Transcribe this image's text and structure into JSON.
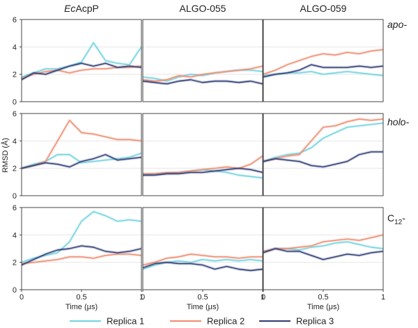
{
  "columns": [
    {
      "prefix": "Ec",
      "label": "AcpP"
    },
    {
      "prefix": "",
      "label": "ALGO-055"
    },
    {
      "prefix": "",
      "label": "ALGO-059"
    }
  ],
  "rows": [
    {
      "label": "apo-",
      "base": "",
      "sub": ""
    },
    {
      "label": "holo-",
      "base": "",
      "sub": ""
    },
    {
      "label": "",
      "base": "C",
      "sub": "12"
    }
  ],
  "row_suffix": "-",
  "ylabel": "RMSD (Å)",
  "xlabel": "Time (μs)",
  "yticks": [
    "0",
    "2",
    "4",
    "6"
  ],
  "xticks": [
    "0",
    "0.5",
    "1"
  ],
  "legend": [
    "Replica 1",
    "Replica 2",
    "Replica 3"
  ],
  "colors": {
    "replica_1": "#6fd3e0",
    "replica_2": "#f08a6e",
    "replica_3": "#2d3a74",
    "axis": "#444444",
    "grid": "#e6e6e6"
  },
  "chart_data": {
    "type": "line",
    "layout": "3x3 small multiples",
    "xlim": [
      0,
      1
    ],
    "ylim": [
      0,
      6
    ],
    "grid": "horizontal",
    "legend_position": "bottom",
    "x": [
      0,
      0.1,
      0.2,
      0.3,
      0.4,
      0.5,
      0.6,
      0.7,
      0.8,
      0.9,
      1.0
    ],
    "panels": [
      {
        "row": "apo-",
        "column": "EcAcpP",
        "series": [
          {
            "name": "Replica 1",
            "values": [
              1.8,
              2.1,
              2.4,
              2.4,
              2.6,
              2.9,
              4.3,
              3.0,
              2.8,
              2.7,
              4.0
            ]
          },
          {
            "name": "Replica 2",
            "values": [
              1.7,
              2.0,
              2.2,
              2.3,
              2.1,
              2.3,
              2.4,
              2.4,
              2.5,
              2.5,
              2.6
            ]
          },
          {
            "name": "Replica 3",
            "values": [
              1.6,
              2.1,
              2.0,
              2.3,
              2.6,
              2.8,
              2.6,
              2.8,
              2.5,
              2.6,
              2.5
            ]
          }
        ]
      },
      {
        "row": "apo-",
        "column": "ALGO-055",
        "series": [
          {
            "name": "Replica 1",
            "values": [
              1.8,
              1.7,
              1.5,
              1.8,
              2.0,
              1.9,
              2.1,
              2.2,
              2.3,
              2.3,
              2.2
            ]
          },
          {
            "name": "Replica 2",
            "values": [
              1.6,
              1.5,
              1.6,
              1.9,
              1.8,
              2.0,
              2.1,
              2.2,
              2.3,
              2.4,
              2.6
            ]
          },
          {
            "name": "Replica 3",
            "values": [
              1.5,
              1.4,
              1.3,
              1.5,
              1.6,
              1.4,
              1.5,
              1.5,
              1.4,
              1.5,
              1.3
            ]
          }
        ]
      },
      {
        "row": "apo-",
        "column": "ALGO-059",
        "series": [
          {
            "name": "Replica 1",
            "values": [
              1.9,
              2.0,
              2.1,
              2.1,
              2.2,
              2.0,
              2.1,
              2.2,
              2.1,
              2.0,
              1.9
            ]
          },
          {
            "name": "Replica 2",
            "values": [
              2.0,
              2.3,
              2.7,
              3.0,
              3.3,
              3.5,
              3.4,
              3.6,
              3.5,
              3.7,
              3.8
            ]
          },
          {
            "name": "Replica 3",
            "values": [
              1.8,
              2.0,
              2.1,
              2.3,
              2.7,
              2.5,
              2.5,
              2.5,
              2.6,
              2.5,
              2.6
            ]
          }
        ]
      },
      {
        "row": "holo-",
        "column": "EcAcpP",
        "series": [
          {
            "name": "Replica 1",
            "values": [
              2.0,
              2.3,
              2.5,
              3.0,
              3.0,
              2.4,
              2.5,
              2.6,
              2.7,
              2.8,
              3.1
            ]
          },
          {
            "name": "Replica 2",
            "values": [
              2.0,
              2.2,
              2.5,
              4.0,
              5.5,
              4.6,
              4.5,
              4.3,
              4.1,
              4.1,
              4.0
            ]
          },
          {
            "name": "Replica 3",
            "values": [
              2.0,
              2.2,
              2.4,
              2.3,
              2.1,
              2.5,
              2.7,
              3.0,
              2.6,
              2.7,
              2.8
            ]
          }
        ]
      },
      {
        "row": "holo-",
        "column": "ALGO-055",
        "series": [
          {
            "name": "Replica 1",
            "values": [
              1.5,
              1.6,
              1.6,
              1.7,
              1.8,
              1.9,
              1.8,
              1.7,
              1.5,
              1.4,
              1.3
            ]
          },
          {
            "name": "Replica 2",
            "values": [
              1.6,
              1.6,
              1.7,
              1.7,
              1.8,
              1.9,
              2.0,
              2.1,
              2.0,
              2.3,
              2.9
            ]
          },
          {
            "name": "Replica 3",
            "values": [
              1.5,
              1.5,
              1.6,
              1.6,
              1.7,
              1.7,
              1.8,
              1.9,
              2.0,
              1.9,
              1.7
            ]
          }
        ]
      },
      {
        "row": "holo-",
        "column": "ALGO-059",
        "series": [
          {
            "name": "Replica 1",
            "values": [
              2.5,
              2.8,
              3.0,
              3.1,
              3.5,
              4.2,
              4.6,
              5.0,
              5.1,
              5.2,
              5.3
            ]
          },
          {
            "name": "Replica 2",
            "values": [
              2.5,
              2.7,
              2.9,
              3.0,
              4.0,
              5.0,
              5.1,
              5.4,
              5.6,
              5.5,
              5.6
            ]
          },
          {
            "name": "Replica 3",
            "values": [
              2.5,
              2.7,
              2.6,
              2.5,
              2.2,
              2.1,
              2.3,
              2.5,
              3.0,
              3.2,
              3.2
            ]
          }
        ]
      },
      {
        "row": "C12-",
        "column": "EcAcpP",
        "series": [
          {
            "name": "Replica 1",
            "values": [
              2.0,
              2.3,
              2.5,
              2.7,
              3.5,
              5.0,
              5.7,
              5.4,
              5.0,
              5.1,
              5.0
            ]
          },
          {
            "name": "Replica 2",
            "values": [
              1.9,
              2.0,
              2.1,
              2.2,
              2.4,
              2.4,
              2.3,
              2.5,
              2.6,
              2.6,
              2.5
            ]
          },
          {
            "name": "Replica 3",
            "values": [
              1.8,
              2.2,
              2.6,
              2.9,
              3.0,
              3.2,
              3.1,
              2.8,
              2.7,
              2.8,
              3.0
            ]
          }
        ]
      },
      {
        "row": "C12-",
        "column": "ALGO-055",
        "series": [
          {
            "name": "Replica 1",
            "values": [
              1.5,
              1.8,
              2.0,
              2.1,
              2.0,
              2.2,
              2.1,
              2.2,
              2.1,
              2.2,
              2.1
            ]
          },
          {
            "name": "Replica 2",
            "values": [
              1.8,
              2.0,
              2.3,
              2.4,
              2.6,
              2.5,
              2.4,
              2.4,
              2.3,
              2.4,
              2.4
            ]
          },
          {
            "name": "Replica 3",
            "values": [
              1.6,
              1.9,
              2.0,
              1.9,
              1.9,
              1.8,
              1.5,
              1.7,
              1.5,
              1.4,
              1.5
            ]
          }
        ]
      },
      {
        "row": "C12-",
        "column": "ALGO-059",
        "series": [
          {
            "name": "Replica 1",
            "values": [
              2.8,
              3.0,
              3.0,
              2.9,
              3.1,
              3.2,
              3.4,
              3.5,
              3.3,
              3.1,
              3.0
            ]
          },
          {
            "name": "Replica 2",
            "values": [
              2.8,
              3.0,
              3.0,
              3.1,
              3.2,
              3.5,
              3.6,
              3.7,
              3.6,
              3.8,
              4.0
            ]
          },
          {
            "name": "Replica 3",
            "values": [
              2.7,
              3.0,
              2.8,
              2.8,
              2.5,
              2.2,
              2.4,
              2.6,
              2.5,
              2.7,
              2.8
            ]
          }
        ]
      }
    ]
  }
}
